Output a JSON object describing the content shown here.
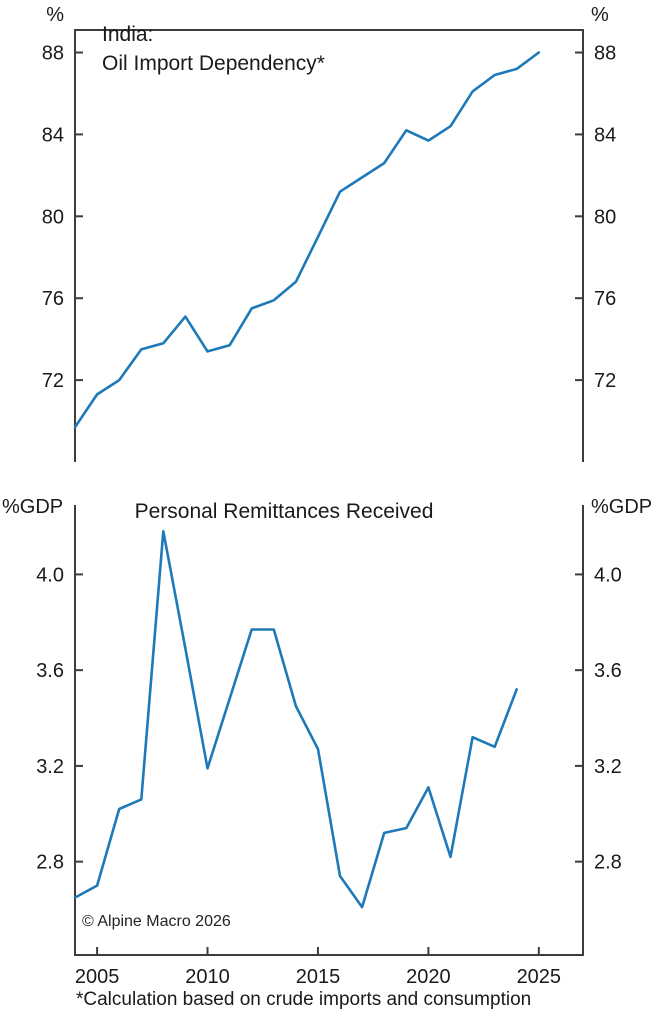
{
  "figure": {
    "background": "#ffffff",
    "axis_color": "#3d3d3d",
    "text_color": "#1a1a1a",
    "line_color": "#1e79b8",
    "copyright": "© Alpine Macro 2026",
    "footnote": "*Calculation based on crude imports and consumption"
  },
  "top_chart": {
    "title_line1": "India:",
    "title_line2": "Oil Import Dependency*",
    "unit_left": "%",
    "unit_right": "%"
  },
  "bottom_chart": {
    "title": "Personal Remittances Received",
    "unit_left": "%GDP",
    "unit_right": "%GDP"
  },
  "chart_data": [
    {
      "type": "line",
      "title": "India: Oil Import Dependency*",
      "ylabel": "%",
      "legend_position": "none",
      "grid": false,
      "xlim": [
        2004,
        2027
      ],
      "ylim": [
        68.0,
        89.1
      ],
      "xticks": [
        2005,
        2010,
        2015,
        2020,
        2025
      ],
      "xtick_labels": [
        "2005",
        "2010",
        "2015",
        "2020",
        "2025"
      ],
      "yticks": [
        72,
        76,
        80,
        84,
        88
      ],
      "ytick_labels": [
        "72",
        "76",
        "80",
        "84",
        "88"
      ],
      "x": [
        2004,
        2005,
        2006,
        2007,
        2008,
        2009,
        2010,
        2011,
        2012,
        2013,
        2014,
        2015,
        2016,
        2017,
        2018,
        2019,
        2020,
        2021,
        2022,
        2023,
        2024,
        2025
      ],
      "values": [
        69.7,
        71.3,
        72.0,
        73.5,
        73.8,
        75.1,
        73.4,
        73.7,
        75.5,
        75.9,
        76.8,
        79.0,
        81.2,
        81.9,
        82.6,
        84.2,
        83.7,
        84.4,
        86.1,
        86.9,
        87.2,
        88.0
      ]
    },
    {
      "type": "line",
      "title": "Personal Remittances Received",
      "ylabel": "%GDP",
      "legend_position": "none",
      "grid": false,
      "xlim": [
        2004,
        2027
      ],
      "ylim": [
        2.41,
        4.29
      ],
      "xticks": [
        2005,
        2010,
        2015,
        2020,
        2025
      ],
      "xtick_labels": [
        "2005",
        "2010",
        "2015",
        "2020",
        "2025"
      ],
      "yticks": [
        2.8,
        3.2,
        3.6,
        4.0
      ],
      "ytick_labels": [
        "2.8",
        "3.2",
        "3.6",
        "4.0"
      ],
      "x": [
        2004,
        2005,
        2006,
        2007,
        2008,
        2009,
        2010,
        2011,
        2012,
        2013,
        2014,
        2015,
        2016,
        2017,
        2018,
        2019,
        2020,
        2021,
        2022,
        2023,
        2024
      ],
      "values": [
        2.65,
        2.7,
        3.02,
        3.06,
        4.18,
        3.69,
        3.19,
        3.48,
        3.77,
        3.77,
        3.45,
        3.27,
        2.74,
        2.61,
        2.92,
        2.94,
        3.11,
        2.82,
        3.32,
        3.28,
        3.52
      ]
    }
  ]
}
